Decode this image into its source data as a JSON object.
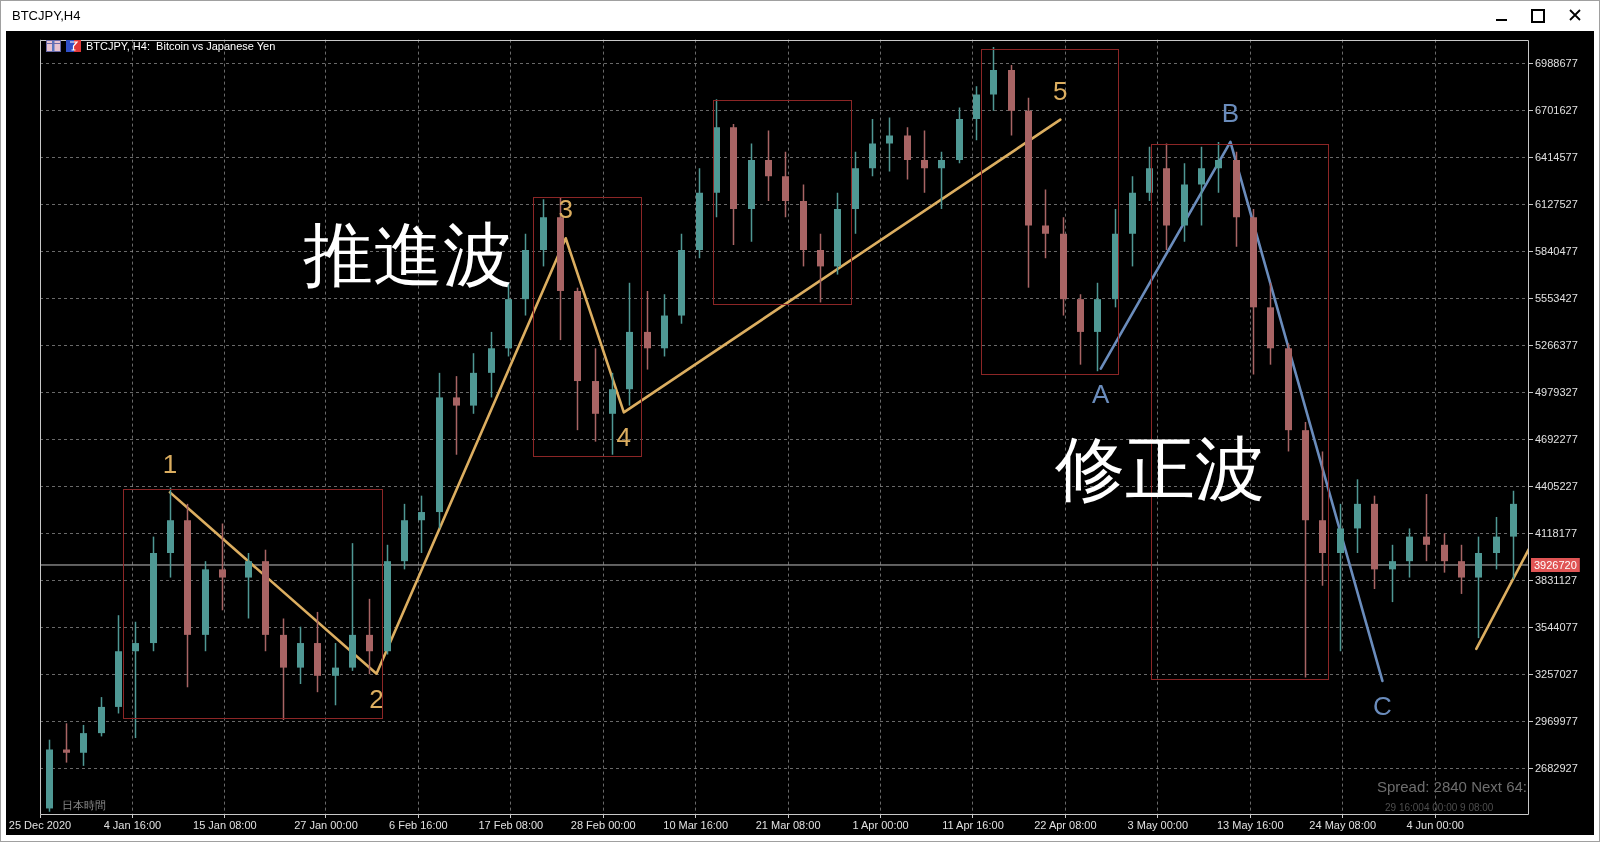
{
  "chart_data": {
    "type": "candlestick",
    "title": "BTCJPY,H4",
    "subtitle": "BTCJPY, H4:  Bitcoin vs Japanese Yen",
    "x": [
      "2020-12-26",
      "2020-12-28",
      "2020-12-30",
      "2021-01-01",
      "2021-01-03",
      "2021-01-05",
      "2021-01-07",
      "2021-01-09",
      "2021-01-11",
      "2021-01-13",
      "2021-01-15",
      "2021-01-18",
      "2021-01-20",
      "2021-01-22",
      "2021-01-24",
      "2021-01-26",
      "2021-01-28",
      "2021-01-30",
      "2021-02-01",
      "2021-02-03",
      "2021-02-05",
      "2021-02-07",
      "2021-02-09",
      "2021-02-11",
      "2021-02-13",
      "2021-02-15",
      "2021-02-17",
      "2021-02-19",
      "2021-02-21",
      "2021-02-23",
      "2021-02-25",
      "2021-02-27",
      "2021-03-01",
      "2021-03-03",
      "2021-03-05",
      "2021-03-07",
      "2021-03-09",
      "2021-03-11",
      "2021-03-13",
      "2021-03-15",
      "2021-03-17",
      "2021-03-19",
      "2021-03-21",
      "2021-03-23",
      "2021-03-25",
      "2021-03-27",
      "2021-03-29",
      "2021-03-31",
      "2021-04-02",
      "2021-04-04",
      "2021-04-06",
      "2021-04-08",
      "2021-04-10",
      "2021-04-12",
      "2021-04-14",
      "2021-04-16",
      "2021-04-18",
      "2021-04-20",
      "2021-04-22",
      "2021-04-24",
      "2021-04-26",
      "2021-04-28",
      "2021-04-30",
      "2021-05-02",
      "2021-05-04",
      "2021-05-06",
      "2021-05-08",
      "2021-05-10",
      "2021-05-12",
      "2021-05-14",
      "2021-05-16",
      "2021-05-18",
      "2021-05-20",
      "2021-05-22",
      "2021-05-24",
      "2021-05-26",
      "2021-05-28",
      "2021-05-30",
      "2021-06-01",
      "2021-06-03",
      "2021-06-05",
      "2021-06-07",
      "2021-06-09",
      "2021-06-11",
      "2021-06-13"
    ],
    "ohlc": [
      [
        2440000,
        2860000,
        2420000,
        2800000
      ],
      [
        2800000,
        2960000,
        2720000,
        2780000
      ],
      [
        2780000,
        2950000,
        2700000,
        2900000
      ],
      [
        2900000,
        3120000,
        2880000,
        3060000
      ],
      [
        3060000,
        3620000,
        3020000,
        3400000
      ],
      [
        3400000,
        3580000,
        2870000,
        3450000
      ],
      [
        3450000,
        4100000,
        3400000,
        4000000
      ],
      [
        4000000,
        4400000,
        3850000,
        4200000
      ],
      [
        4200000,
        4300000,
        3180000,
        3500000
      ],
      [
        3500000,
        3950000,
        3400000,
        3900000
      ],
      [
        3900000,
        4180000,
        3650000,
        3850000
      ],
      [
        3850000,
        4000000,
        3600000,
        3950000
      ],
      [
        3950000,
        4020000,
        3400000,
        3500000
      ],
      [
        3500000,
        3600000,
        2980000,
        3300000
      ],
      [
        3300000,
        3550000,
        3200000,
        3450000
      ],
      [
        3450000,
        3640000,
        3150000,
        3250000
      ],
      [
        3250000,
        3450000,
        3070000,
        3300000
      ],
      [
        3300000,
        4060000,
        3280000,
        3500000
      ],
      [
        3500000,
        3720000,
        3260000,
        3400000
      ],
      [
        3400000,
        4050000,
        3380000,
        3950000
      ],
      [
        3950000,
        4300000,
        3900000,
        4200000
      ],
      [
        4200000,
        4350000,
        4000000,
        4250000
      ],
      [
        4250000,
        5100000,
        4150000,
        4950000
      ],
      [
        4950000,
        5080000,
        4600000,
        4900000
      ],
      [
        4900000,
        5220000,
        4850000,
        5100000
      ],
      [
        5100000,
        5350000,
        4950000,
        5250000
      ],
      [
        5250000,
        5650000,
        5200000,
        5550000
      ],
      [
        5550000,
        5950000,
        5450000,
        5850000
      ],
      [
        5850000,
        6160000,
        5750000,
        6050000
      ],
      [
        6050000,
        6170000,
        5300000,
        5600000
      ],
      [
        5600000,
        5620000,
        4750000,
        5050000
      ],
      [
        5050000,
        5250000,
        4680000,
        4850000
      ],
      [
        4850000,
        5100000,
        4600000,
        5000000
      ],
      [
        5000000,
        5650000,
        4900000,
        5350000
      ],
      [
        5350000,
        5600000,
        5120000,
        5250000
      ],
      [
        5250000,
        5580000,
        5200000,
        5450000
      ],
      [
        5450000,
        5950000,
        5400000,
        5850000
      ],
      [
        5850000,
        6350000,
        5800000,
        6200000
      ],
      [
        6200000,
        6770000,
        6050000,
        6600000
      ],
      [
        6600000,
        6620000,
        5880000,
        6100000
      ],
      [
        6100000,
        6500000,
        5900000,
        6400000
      ],
      [
        6400000,
        6580000,
        6150000,
        6300000
      ],
      [
        6300000,
        6450000,
        6050000,
        6150000
      ],
      [
        6150000,
        6250000,
        5750000,
        5850000
      ],
      [
        5850000,
        5950000,
        5530000,
        5750000
      ],
      [
        5750000,
        6200000,
        5700000,
        6100000
      ],
      [
        6100000,
        6450000,
        5950000,
        6350000
      ],
      [
        6350000,
        6650000,
        6300000,
        6500000
      ],
      [
        6500000,
        6660000,
        6330000,
        6550000
      ],
      [
        6550000,
        6600000,
        6280000,
        6400000
      ],
      [
        6400000,
        6580000,
        6200000,
        6350000
      ],
      [
        6350000,
        6450000,
        6100000,
        6400000
      ],
      [
        6400000,
        6720000,
        6380000,
        6650000
      ],
      [
        6650000,
        6850000,
        6520000,
        6800000
      ],
      [
        6800000,
        7090000,
        6700000,
        6950000
      ],
      [
        6950000,
        6980000,
        6550000,
        6700000
      ],
      [
        6700000,
        6780000,
        5620000,
        6000000
      ],
      [
        6000000,
        6220000,
        5800000,
        5950000
      ],
      [
        5950000,
        6050000,
        5450000,
        5550000
      ],
      [
        5550000,
        5580000,
        5150000,
        5350000
      ],
      [
        5350000,
        5650000,
        5110000,
        5550000
      ],
      [
        5550000,
        6100000,
        5500000,
        5950000
      ],
      [
        5950000,
        6300000,
        5750000,
        6200000
      ],
      [
        6200000,
        6480000,
        6150000,
        6350000
      ],
      [
        6350000,
        6500000,
        5850000,
        6000000
      ],
      [
        6000000,
        6380000,
        5900000,
        6250000
      ],
      [
        6250000,
        6480000,
        6000000,
        6350000
      ],
      [
        6350000,
        6510000,
        6200000,
        6400000
      ],
      [
        6400000,
        6450000,
        5870000,
        6050000
      ],
      [
        6050000,
        6100000,
        5090000,
        5500000
      ],
      [
        5500000,
        5650000,
        5150000,
        5250000
      ],
      [
        5250000,
        5280000,
        4620000,
        4750000
      ],
      [
        4750000,
        4800000,
        3240000,
        4200000
      ],
      [
        4200000,
        4620000,
        3800000,
        4000000
      ],
      [
        4000000,
        4300000,
        3400000,
        4150000
      ],
      [
        4150000,
        4450000,
        4000000,
        4300000
      ],
      [
        4300000,
        4350000,
        3780000,
        3900000
      ],
      [
        3900000,
        4050000,
        3700000,
        3950000
      ],
      [
        3950000,
        4150000,
        3850000,
        4100000
      ],
      [
        4100000,
        4360000,
        3950000,
        4050000
      ],
      [
        4050000,
        4120000,
        3880000,
        3950000
      ],
      [
        3950000,
        4050000,
        3750000,
        3850000
      ],
      [
        3850000,
        4100000,
        3480000,
        4000000
      ],
      [
        4000000,
        4220000,
        3900000,
        4100000
      ],
      [
        4100000,
        4380000,
        3840000,
        4300000
      ]
    ],
    "colors": [
      "#4f9894",
      "#a86464",
      "#4f9894",
      "#4f9894",
      "#4f9894",
      "#4f9894",
      "#4f9894",
      "#4f9894",
      "#a86464",
      "#4f9894",
      "#a86464",
      "#4f9894",
      "#a86464",
      "#a86464",
      "#4f9894",
      "#a86464",
      "#4f9894",
      "#4f9894",
      "#a86464",
      "#4f9894",
      "#4f9894",
      "#4f9894",
      "#4f9894",
      "#a86464",
      "#4f9894",
      "#4f9894",
      "#4f9894",
      "#4f9894",
      "#4f9894",
      "#a86464",
      "#a86464",
      "#a86464",
      "#4f9894",
      "#4f9894",
      "#a86464",
      "#4f9894",
      "#4f9894",
      "#4f9894",
      "#4f9894",
      "#a86464",
      "#4f9894",
      "#a86464",
      "#a86464",
      "#a86464",
      "#a86464",
      "#4f9894",
      "#4f9894",
      "#4f9894",
      "#4f9894",
      "#a86464",
      "#a86464",
      "#4f9894",
      "#4f9894",
      "#4f9894",
      "#4f9894",
      "#a86464",
      "#a86464",
      "#a86464",
      "#a86464",
      "#a86464",
      "#4f9894",
      "#4f9894",
      "#4f9894",
      "#4f9894",
      "#a86464",
      "#4f9894",
      "#4f9894",
      "#4f9894",
      "#a86464",
      "#a86464",
      "#a86464",
      "#a86464",
      "#a86464",
      "#a86464",
      "#4f9894",
      "#4f9894",
      "#a86464",
      "#4f9894",
      "#4f9894",
      "#a86464",
      "#a86464",
      "#a86464",
      "#4f9894",
      "#4f9894",
      "#4f9894"
    ],
    "series": [
      {
        "type": "line",
        "x": [
          "2021-01-09T00:00",
          "2021-02-01T20:00",
          "2021-02-23T16:00",
          "2021-03-02T09:00",
          "2021-04-21T18:00"
        ],
        "values": [
          4370000,
          3263000,
          5922000,
          4859000,
          6646000
        ],
        "color": "#dcae60"
      },
      {
        "type": "line",
        "x": [
          "2021-04-26T10:00",
          "2021-05-11T09:00",
          "2021-05-28T22:00"
        ],
        "values": [
          5126000,
          6511000,
          3219000
        ],
        "color": "#6a8cbc"
      },
      {
        "type": "line",
        "x": [
          "2021-06-08T18:00",
          "2021-06-14T20:00"
        ],
        "values": [
          3415000,
          4025000
        ],
        "color": "#dcae60"
      }
    ],
    "xlim": [
      "2020-12-25T00:00",
      "2021-06-14T20:00"
    ],
    "ylim": [
      2400000,
      7135000
    ],
    "xticks": [
      {
        "value": "2020-12-25T00:00",
        "label": "25 Dec 2020"
      },
      {
        "value": "2021-01-04T16:00",
        "label": "4 Jan 16:00"
      },
      {
        "value": "2021-01-15T08:00",
        "label": "15 Jan 08:00"
      },
      {
        "value": "2021-01-27T00:00",
        "label": "27 Jan 00:00"
      },
      {
        "value": "2021-02-06T16:00",
        "label": "6 Feb 16:00"
      },
      {
        "value": "2021-02-17T08:00",
        "label": "17 Feb 08:00"
      },
      {
        "value": "2021-02-28T00:00",
        "label": "28 Feb 00:00"
      },
      {
        "value": "2021-03-10T16:00",
        "label": "10 Mar 16:00"
      },
      {
        "value": "2021-03-21T08:00",
        "label": "21 Mar 08:00"
      },
      {
        "value": "2021-04-01T00:00",
        "label": "1 Apr 00:00"
      },
      {
        "value": "2021-04-11T16:00",
        "label": "11 Apr 16:00"
      },
      {
        "value": "2021-04-22T08:00",
        "label": "22 Apr 08:00"
      },
      {
        "value": "2021-05-03T00:00",
        "label": "3 May 00:00"
      },
      {
        "value": "2021-05-13T16:00",
        "label": "13 May 16:00"
      },
      {
        "value": "2021-05-24T08:00",
        "label": "24 May 08:00"
      },
      {
        "value": "2021-06-04T00:00",
        "label": "4 Jun 00:00"
      }
    ],
    "yticks": [
      2682927,
      2969977,
      3257027,
      3544077,
      3831127,
      4118177,
      4405227,
      4692277,
      4979327,
      5266377,
      5553427,
      5840477,
      6127527,
      6414577,
      6701627,
      6988677
    ],
    "grid": true,
    "marker": "none",
    "ref_lines": [
      {
        "axis": "y",
        "value": 3926720,
        "label": "3926720",
        "color": "#c0c0c0"
      }
    ],
    "annotations": [
      {
        "text": "1",
        "x": "2021-01-09T00:00",
        "y": 4370000
      },
      {
        "text": "2",
        "x": "2021-02-01T20:00",
        "y": 3263000
      },
      {
        "text": "3",
        "x": "2021-02-23T16:00",
        "y": 5922000
      },
      {
        "text": "4",
        "x": "2021-03-02T09:00",
        "y": 4859000
      },
      {
        "text": "5",
        "x": "2021-04-21T18:00",
        "y": 6646000
      },
      {
        "text": "A",
        "x": "2021-04-26T10:00",
        "y": 5126000
      },
      {
        "text": "B",
        "x": "2021-05-11T09:00",
        "y": 6511000
      },
      {
        "text": "C",
        "x": "2021-05-28T22:00",
        "y": 3219000
      },
      "推進波",
      "修正波",
      "日本時間",
      "Spread: 2840 Next 64:",
      "29 16:004 00:00 9 08:00"
    ]
  }
}
